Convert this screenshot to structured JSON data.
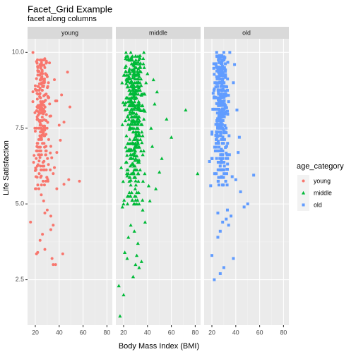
{
  "chart_data": {
    "type": "scatter",
    "title": "Facet_Grid Example",
    "subtitle": "facet along columns",
    "xlabel": "Body Mass Index (BMI)",
    "ylabel": "Life Satisfaction",
    "xlim": [
      13.5,
      84.5
    ],
    "ylim": [
      1.0,
      10.45
    ],
    "x_ticks": [
      20,
      40,
      60,
      80
    ],
    "y_ticks": [
      2.5,
      5.0,
      7.5,
      10.0
    ],
    "x_tick_labels": [
      "20",
      "40",
      "60",
      "80"
    ],
    "y_tick_labels": [
      "2.5",
      "5.0",
      "7.5",
      "10.0"
    ],
    "grid": true,
    "legend": {
      "title": "age_category",
      "position": "right",
      "entries": [
        "young",
        "middle",
        "old"
      ]
    },
    "facets": [
      {
        "label": "young",
        "color": "#F8766D",
        "shape": "circle",
        "points": [
          [
            18,
            10.0
          ],
          [
            21,
            9.7
          ],
          [
            24,
            9.6
          ],
          [
            22,
            9.4
          ],
          [
            26,
            9.3
          ],
          [
            30,
            9.2
          ],
          [
            47,
            9.35
          ],
          [
            36,
            9.1
          ],
          [
            42,
            8.6
          ],
          [
            37,
            8.4
          ],
          [
            38,
            8.4
          ],
          [
            32,
            8.3
          ],
          [
            28,
            8.6
          ],
          [
            20,
            8.9
          ],
          [
            49,
            8.2
          ],
          [
            40,
            7.6
          ],
          [
            44,
            7.7
          ],
          [
            41,
            7.1
          ],
          [
            38,
            6.7
          ],
          [
            36,
            6.2
          ],
          [
            35,
            6.0
          ],
          [
            57,
            5.75
          ],
          [
            48,
            5.8
          ],
          [
            44,
            5.65
          ],
          [
            38,
            5.5
          ],
          [
            30,
            4.8
          ],
          [
            28,
            4.7
          ],
          [
            33,
            4.6
          ],
          [
            35,
            4.3
          ],
          [
            33,
            4.15
          ],
          [
            26,
            4.0
          ],
          [
            16,
            4.4
          ],
          [
            22,
            3.4
          ],
          [
            21,
            3.35
          ],
          [
            34,
            3.2
          ],
          [
            43,
            3.35
          ],
          [
            35,
            3.0
          ],
          [
            37,
            3.0
          ],
          [
            28,
            3.5
          ],
          [
            24,
            3.8
          ],
          [
            23,
            5.5
          ],
          [
            25,
            5.3
          ],
          [
            27,
            5.1
          ],
          [
            20,
            6.1
          ],
          [
            31,
            6.3
          ],
          [
            19,
            6.6
          ],
          [
            22,
            7.0
          ],
          [
            26,
            7.0
          ],
          [
            29,
            7.3
          ],
          [
            33,
            7.9
          ],
          [
            25,
            8.0
          ],
          [
            23,
            8.2
          ],
          [
            18,
            8.7
          ],
          [
            27,
            8.9
          ],
          [
            31,
            9.0
          ],
          [
            24,
            7.6
          ],
          [
            22,
            7.8
          ],
          [
            20,
            7.4
          ],
          [
            29,
            6.9
          ],
          [
            33,
            6.9
          ]
        ],
        "cluster": {
          "x_range": [
            17,
            34
          ],
          "y_range": [
            5.5,
            9.8
          ],
          "count": 220
        }
      },
      {
        "label": "middle",
        "color": "#00BA38",
        "shape": "triangle",
        "points": [
          [
            82,
            6.0
          ],
          [
            72,
            8.1
          ],
          [
            60,
            7.2
          ],
          [
            56,
            7.8
          ],
          [
            52,
            6.5
          ],
          [
            50,
            6.05
          ],
          [
            47,
            5.5
          ],
          [
            46,
            8.3
          ],
          [
            45,
            9.1
          ],
          [
            40,
            9.3
          ],
          [
            37,
            10.0
          ],
          [
            26,
            10.0
          ],
          [
            22,
            10.0
          ],
          [
            42,
            5.1
          ],
          [
            38,
            4.4
          ],
          [
            32,
            3.7
          ],
          [
            31,
            3.3
          ],
          [
            30,
            3.0
          ],
          [
            26,
            4.3
          ],
          [
            24,
            3.9
          ],
          [
            21,
            3.4
          ],
          [
            23,
            3.2
          ],
          [
            16,
            2.3
          ],
          [
            20,
            2.0
          ],
          [
            17,
            1.3
          ],
          [
            28,
            2.6
          ],
          [
            33,
            2.9
          ],
          [
            36,
            4.8
          ],
          [
            19,
            4.9
          ],
          [
            18,
            6.2
          ],
          [
            44,
            6.9
          ],
          [
            43,
            7.5
          ],
          [
            48,
            8.7
          ],
          [
            41,
            5.6
          ],
          [
            35,
            3.1
          ],
          [
            29,
            4.1
          ]
        ],
        "cluster": {
          "x_range": [
            17,
            40
          ],
          "y_range": [
            5.0,
            9.9
          ],
          "count": 420
        }
      },
      {
        "label": "old",
        "color": "#619CFF",
        "shape": "square",
        "points": [
          [
            55,
            5.95
          ],
          [
            50,
            5.0
          ],
          [
            47,
            4.9
          ],
          [
            44,
            5.4
          ],
          [
            42,
            6.7
          ],
          [
            43,
            7.2
          ],
          [
            41,
            8.1
          ],
          [
            38,
            9.0
          ],
          [
            39,
            9.6
          ],
          [
            35,
            10.0
          ],
          [
            24,
            10.0
          ],
          [
            30,
            10.0
          ],
          [
            36,
            4.6
          ],
          [
            32,
            4.5
          ],
          [
            27,
            4.1
          ],
          [
            25,
            3.9
          ],
          [
            34,
            4.3
          ],
          [
            25,
            4.7
          ],
          [
            20,
            3.3
          ],
          [
            22,
            2.5
          ],
          [
            27,
            2.7
          ],
          [
            30,
            2.9
          ],
          [
            38,
            3.2
          ],
          [
            19,
            5.6
          ],
          [
            18,
            6.4
          ],
          [
            20,
            7.3
          ],
          [
            40,
            5.8
          ],
          [
            37,
            5.9
          ],
          [
            33,
            4.8
          ],
          [
            29,
            4.4
          ]
        ],
        "cluster": {
          "x_range": [
            19,
            36
          ],
          "y_range": [
            5.6,
            9.9
          ],
          "count": 360
        }
      }
    ]
  }
}
